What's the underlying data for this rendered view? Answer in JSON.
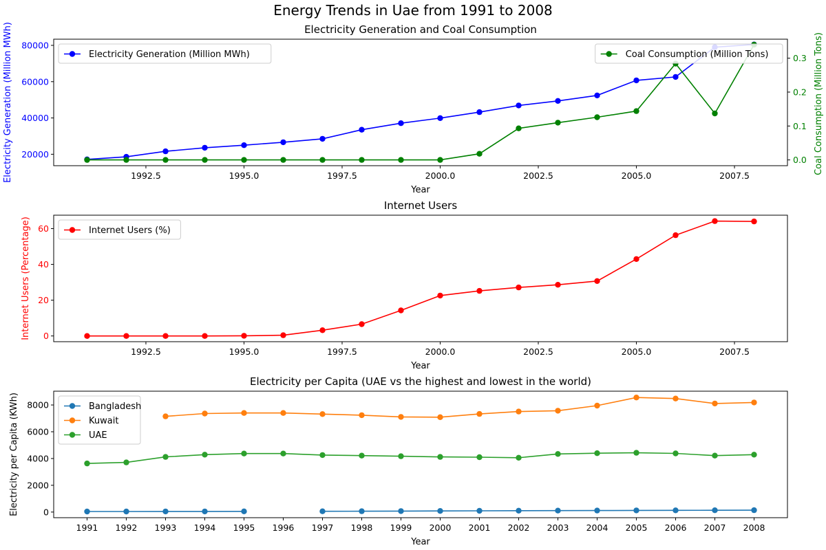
{
  "figure_title": "Energy Trends in Uae from 1991 to 2008",
  "chart_data": [
    {
      "type": "line",
      "title": "Electricity Generation and Coal Consumption",
      "xlabel": "Year",
      "x_ticks": [
        "1992.5",
        "1995.0",
        "1997.5",
        "2000.0",
        "2002.5",
        "2005.0",
        "2007.5"
      ],
      "xlim": [
        1990.15,
        2008.85
      ],
      "grid": false,
      "left_axis": {
        "label": "Electricity Generation (Million MWh)",
        "color": "#0000ff",
        "ylim": [
          13700,
          83400
        ],
        "ticks": [
          "20000",
          "40000",
          "60000",
          "80000"
        ]
      },
      "right_axis": {
        "label": "Coal Consumption (Million Tons)",
        "color": "#008000",
        "ylim": [
          -0.017,
          0.356
        ],
        "ticks": [
          "0.0",
          "0.1",
          "0.2",
          "0.3"
        ]
      },
      "series": [
        {
          "name": "Electricity Generation (Million MWh)",
          "axis": "left",
          "color": "#0000ff",
          "x": [
            1991,
            1992,
            1993,
            1994,
            1995,
            1996,
            1997,
            1998,
            1999,
            2000,
            2001,
            2002,
            2003,
            2004,
            2005,
            2006,
            2007,
            2008
          ],
          "values": [
            17200,
            18600,
            21600,
            23600,
            25000,
            26600,
            28500,
            33500,
            37100,
            39900,
            43200,
            46900,
            49400,
            52400,
            60700,
            62600,
            79000,
            80500
          ]
        },
        {
          "name": "Coal Consumption (Million Tons)",
          "axis": "right",
          "color": "#008000",
          "x": [
            1991,
            1992,
            1993,
            1994,
            1995,
            1996,
            1997,
            1998,
            1999,
            2000,
            2001,
            2002,
            2003,
            2004,
            2005,
            2006,
            2007,
            2008
          ],
          "values": [
            0,
            0,
            0,
            0,
            0,
            0,
            0,
            0,
            0,
            0,
            0.018,
            0.093,
            0.11,
            0.126,
            0.144,
            0.284,
            0.137,
            0.34
          ]
        }
      ],
      "legends": [
        "upper left (Electricity Generation)",
        "upper right (Coal Consumption)"
      ]
    },
    {
      "type": "line",
      "title": "Internet Users",
      "xlabel": "Year",
      "x_ticks": [
        "1992.5",
        "1995.0",
        "1997.5",
        "2000.0",
        "2002.5",
        "2005.0",
        "2007.5"
      ],
      "xlim": [
        1990.15,
        2008.85
      ],
      "grid": false,
      "left_axis": {
        "label": "Internet Users (Percentage)",
        "color": "#ff0000",
        "ylim": [
          -3.2,
          67.5
        ],
        "ticks": [
          "0",
          "20",
          "40",
          "60"
        ]
      },
      "series": [
        {
          "name": "Internet Users (%)",
          "axis": "left",
          "color": "#ff0000",
          "x": [
            1991,
            1992,
            1993,
            1994,
            1995,
            1996,
            1997,
            1998,
            1999,
            2000,
            2001,
            2002,
            2003,
            2004,
            2005,
            2006,
            2007,
            2008
          ],
          "values": [
            0,
            0,
            0,
            0,
            0.1,
            0.4,
            3.2,
            6.6,
            14.3,
            22.6,
            25.2,
            27.1,
            28.6,
            30.7,
            43,
            56.3,
            64.2,
            64
          ]
        }
      ],
      "legends": [
        "upper left"
      ]
    },
    {
      "type": "line",
      "title": "Electricity per Capita (UAE vs the highest and lowest in the world)",
      "xlabel": "Year",
      "x_ticks": [
        "1991",
        "1992",
        "1993",
        "1994",
        "1995",
        "1996",
        "1997",
        "1998",
        "1999",
        "2000",
        "2001",
        "2002",
        "2003",
        "2004",
        "2005",
        "2006",
        "2007",
        "2008"
      ],
      "xlim": [
        1990.15,
        2008.85
      ],
      "grid": false,
      "left_axis": {
        "label": "Electricity per Capita (KWh)",
        "color": "#000000",
        "ylim": [
          -420,
          9030
        ],
        "ticks": [
          "0",
          "2000",
          "4000",
          "6000",
          "8000"
        ]
      },
      "series": [
        {
          "name": "Bangladesh",
          "axis": "left",
          "color": "#1f77b4",
          "x": [
            1991,
            1992,
            1993,
            1994,
            1995,
            1996,
            1997,
            1998,
            1999,
            2000,
            2001,
            2002,
            2003,
            2004,
            2005,
            2006,
            2007,
            2008
          ],
          "values": [
            40,
            42,
            45,
            48,
            50,
            null,
            60,
            65,
            75,
            85,
            95,
            105,
            110,
            115,
            125,
            130,
            135,
            140
          ]
        },
        {
          "name": "Kuwait",
          "axis": "left",
          "color": "#ff7f0e",
          "x": [
            1991,
            1992,
            1993,
            1994,
            1995,
            1996,
            1997,
            1998,
            1999,
            2000,
            2001,
            2002,
            2003,
            2004,
            2005,
            2006,
            2007,
            2008
          ],
          "values": [
            null,
            null,
            7150,
            7360,
            7400,
            7400,
            7320,
            7240,
            7110,
            7090,
            7330,
            7510,
            7570,
            7950,
            8560,
            8480,
            8110,
            8190
          ]
        },
        {
          "name": "UAE",
          "axis": "left",
          "color": "#2ca02c",
          "x": [
            1991,
            1992,
            1993,
            1994,
            1995,
            1996,
            1997,
            1998,
            1999,
            2000,
            2001,
            2002,
            2003,
            2004,
            2005,
            2006,
            2007,
            2008
          ],
          "values": [
            3630,
            3710,
            4120,
            4290,
            4370,
            4370,
            4260,
            4220,
            4170,
            4120,
            4100,
            4060,
            4340,
            4400,
            4430,
            4380,
            4220,
            4290
          ]
        }
      ],
      "legends": [
        "upper left"
      ]
    }
  ]
}
